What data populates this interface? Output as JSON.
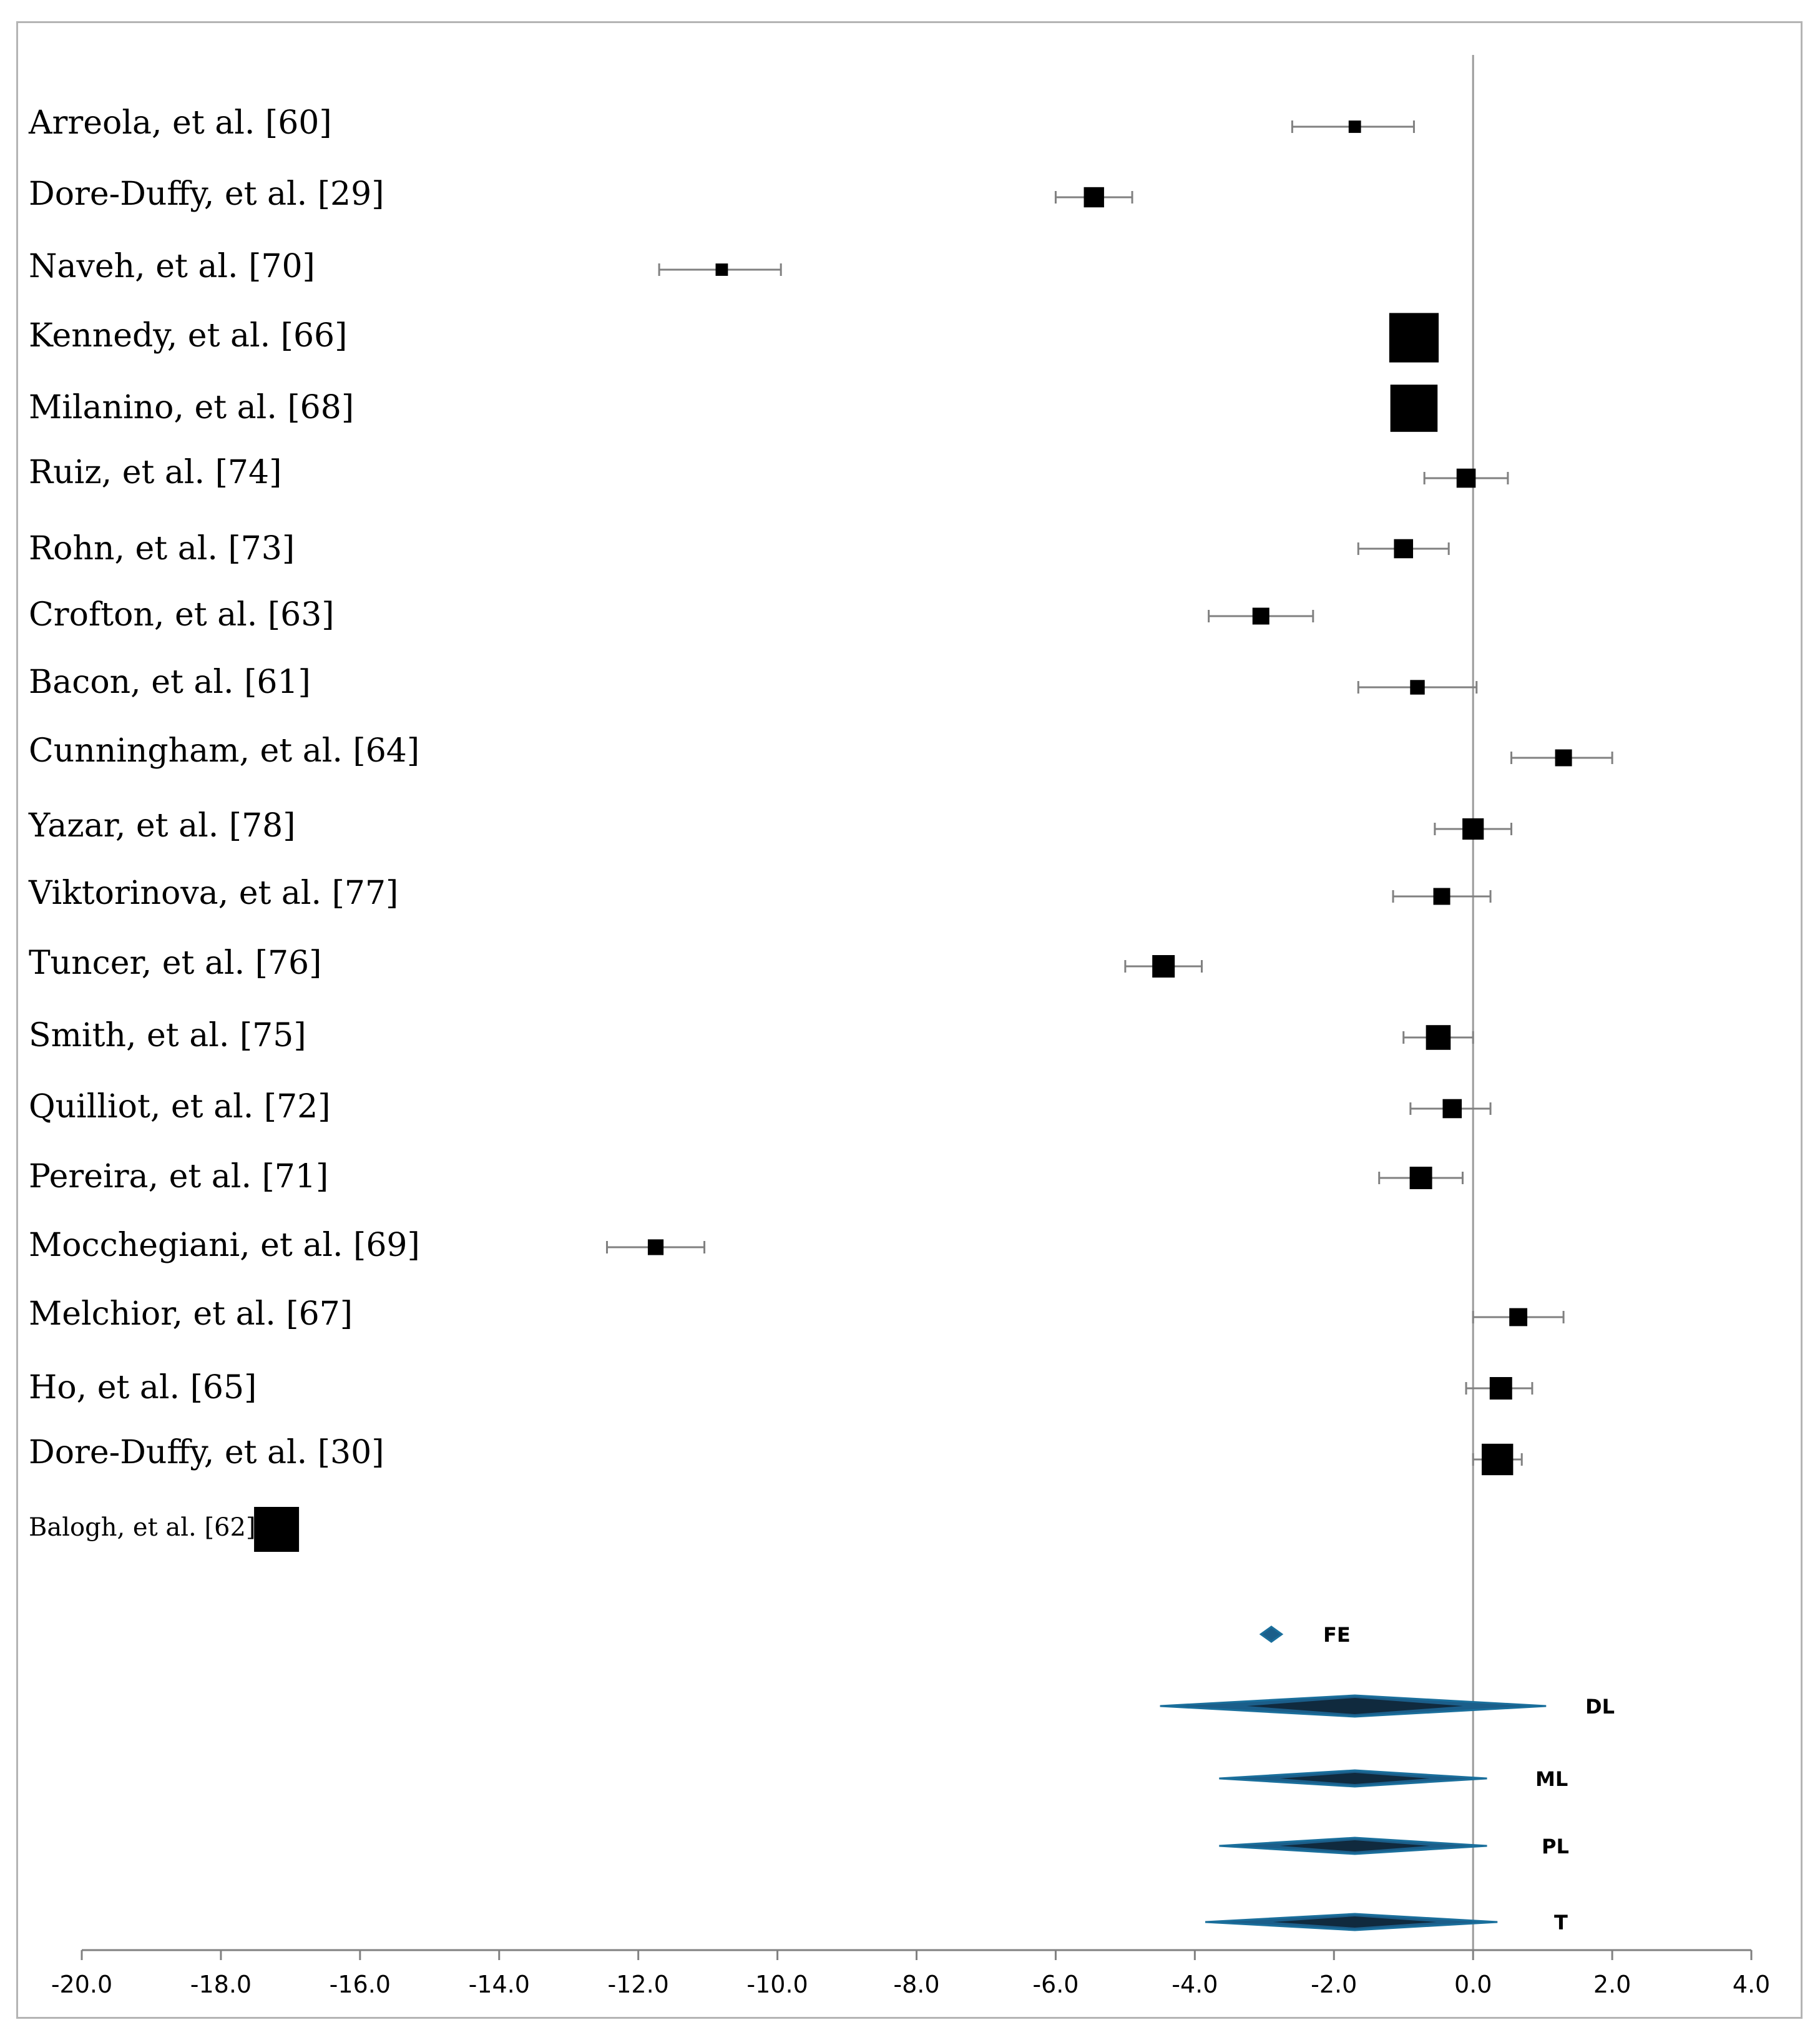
{
  "chart_data": {
    "type": "forest",
    "title": "",
    "xlabel": "",
    "ylabel": "",
    "xlim": [
      -20,
      4
    ],
    "xticks": [
      -20,
      -18,
      -16,
      -14,
      -12,
      -10,
      -8,
      -6,
      -4,
      -2,
      0,
      2,
      4
    ],
    "xtick_labels": [
      "-20.0",
      "-18.0",
      "-16.0",
      "-14.0",
      "-12.0",
      "-10.0",
      "-8.0",
      "-6.0",
      "-4.0",
      "-2.0",
      "0.0",
      "2.0",
      "4.0"
    ],
    "reference_line": 0,
    "studies": [
      {
        "label": "Arreola, et al. [60]",
        "effect": -1.7,
        "ci": [
          -2.6,
          -0.85
        ],
        "weight": 0.55
      },
      {
        "label": "Dore-Duffy, et al. [29]",
        "effect": -5.45,
        "ci": [
          -6.0,
          -4.9
        ],
        "weight": 0.9
      },
      {
        "label": "Naveh, et al. [70]",
        "effect": -10.8,
        "ci": [
          -11.7,
          -9.95
        ],
        "weight": 0.55
      },
      {
        "label": "Kennedy, et al. [66]",
        "effect": -0.85,
        "ci": null,
        "weight": 2.2
      },
      {
        "label": "Milanino, et al. [68]",
        "effect": -0.85,
        "ci": null,
        "weight": 2.1
      },
      {
        "label": "Ruiz, et al. [74]",
        "effect": -0.1,
        "ci": [
          -0.7,
          0.5
        ],
        "weight": 0.85
      },
      {
        "label": "Rohn, et al. [73]",
        "effect": -1.0,
        "ci": [
          -1.65,
          -0.35
        ],
        "weight": 0.85
      },
      {
        "label": "Crofton, et al. [63]",
        "effect": -3.05,
        "ci": [
          -3.8,
          -2.3
        ],
        "weight": 0.75
      },
      {
        "label": "Bacon, et al. [61]",
        "effect": -0.8,
        "ci": [
          -1.65,
          0.05
        ],
        "weight": 0.65
      },
      {
        "label": "Cunningham, et al. [64]",
        "effect": 1.3,
        "ci": [
          0.55,
          2.0
        ],
        "weight": 0.75
      },
      {
        "label": "Yazar, et al. [78]",
        "effect": 0.0,
        "ci": [
          -0.55,
          0.55
        ],
        "weight": 0.95
      },
      {
        "label": "Viktorinova, et al. [77]",
        "effect": -0.45,
        "ci": [
          -1.15,
          0.25
        ],
        "weight": 0.75
      },
      {
        "label": "Tuncer, et al. [76]",
        "effect": -4.45,
        "ci": [
          -5.0,
          -3.9
        ],
        "weight": 1.0
      },
      {
        "label": "Smith, et al. [75]",
        "effect": -0.5,
        "ci": [
          -1.0,
          0.0
        ],
        "weight": 1.1
      },
      {
        "label": "Quilliot, et al. [72]",
        "effect": -0.3,
        "ci": [
          -0.9,
          0.25
        ],
        "weight": 0.85
      },
      {
        "label": "Pereira, et al. [71]",
        "effect": -0.75,
        "ci": [
          -1.35,
          -0.15
        ],
        "weight": 1.0
      },
      {
        "label": "Mocchegiani, et al. [69]",
        "effect": -11.75,
        "ci": [
          -12.45,
          -11.05
        ],
        "weight": 0.7
      },
      {
        "label": "Melchior, et al. [67]",
        "effect": 0.65,
        "ci": [
          0.0,
          1.3
        ],
        "weight": 0.8
      },
      {
        "label": "Ho, et al. [65]",
        "effect": 0.4,
        "ci": [
          -0.1,
          0.85
        ],
        "weight": 1.0
      },
      {
        "label": "Dore-Duffy, et al. [30]",
        "effect": 0.35,
        "ci": [
          0.0,
          0.7
        ],
        "weight": 1.4
      },
      {
        "label": "Balogh, et al. [62]",
        "effect": -17.2,
        "ci": null,
        "weight": 2.0
      }
    ],
    "pooled_estimates": [
      {
        "label": "FE",
        "effect": -2.9,
        "ci": [
          -3.05,
          -2.75
        ]
      },
      {
        "label": "DL",
        "effect": -1.7,
        "ci": [
          -4.5,
          1.05
        ]
      },
      {
        "label": "ML",
        "effect": -1.7,
        "ci": [
          -3.65,
          0.2
        ]
      },
      {
        "label": "PL",
        "effect": -1.7,
        "ci": [
          -3.65,
          0.2
        ]
      },
      {
        "label": "T",
        "effect": -1.7,
        "ci": [
          -3.85,
          0.35
        ]
      }
    ],
    "colors": {
      "marker": "#000000",
      "ci_line": "#808080",
      "axis": "#808080",
      "reference_line": "#9a9a9a",
      "diamond_fill": "#1b5e8a",
      "diamond_edge": "#1a6f9c",
      "diamond_center": "#102a3e"
    }
  }
}
